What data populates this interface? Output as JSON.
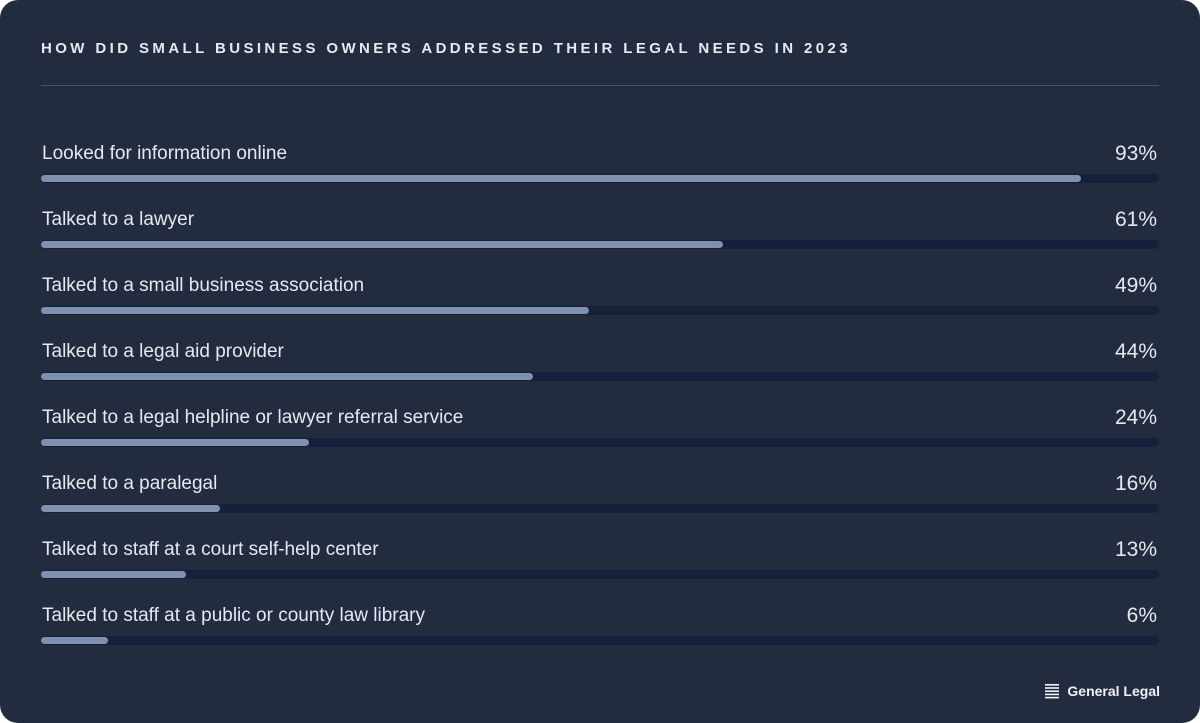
{
  "chart_data": {
    "type": "bar",
    "orientation": "horizontal",
    "title": "HOW DID SMALL BUSINESS OWNERS ADDRESSED THEIR LEGAL NEEDS IN 2023",
    "categories": [
      "Looked for information online",
      "Talked to a lawyer",
      "Talked to a small business association",
      "Talked to a legal aid provider",
      "Talked to a legal helpline or lawyer referral service",
      "Talked to a paralegal",
      "Talked to staff at a court self-help center",
      "Talked to staff at a public or county law library"
    ],
    "values": [
      93,
      61,
      49,
      44,
      24,
      16,
      13,
      6
    ],
    "value_labels": [
      "93%",
      "61%",
      "49%",
      "44%",
      "24%",
      "16%",
      "13%",
      "6%"
    ],
    "xlim": [
      0,
      100
    ],
    "unit": "%",
    "grid": false,
    "colors": {
      "background": "#232b3e",
      "bar_fill": "#8090b0",
      "bar_track": "#17203a",
      "text": "#e4e8ef",
      "divider": "#4a5366"
    }
  },
  "brand": {
    "name": "General Legal",
    "icon": "stacked-lines-logo-icon"
  }
}
